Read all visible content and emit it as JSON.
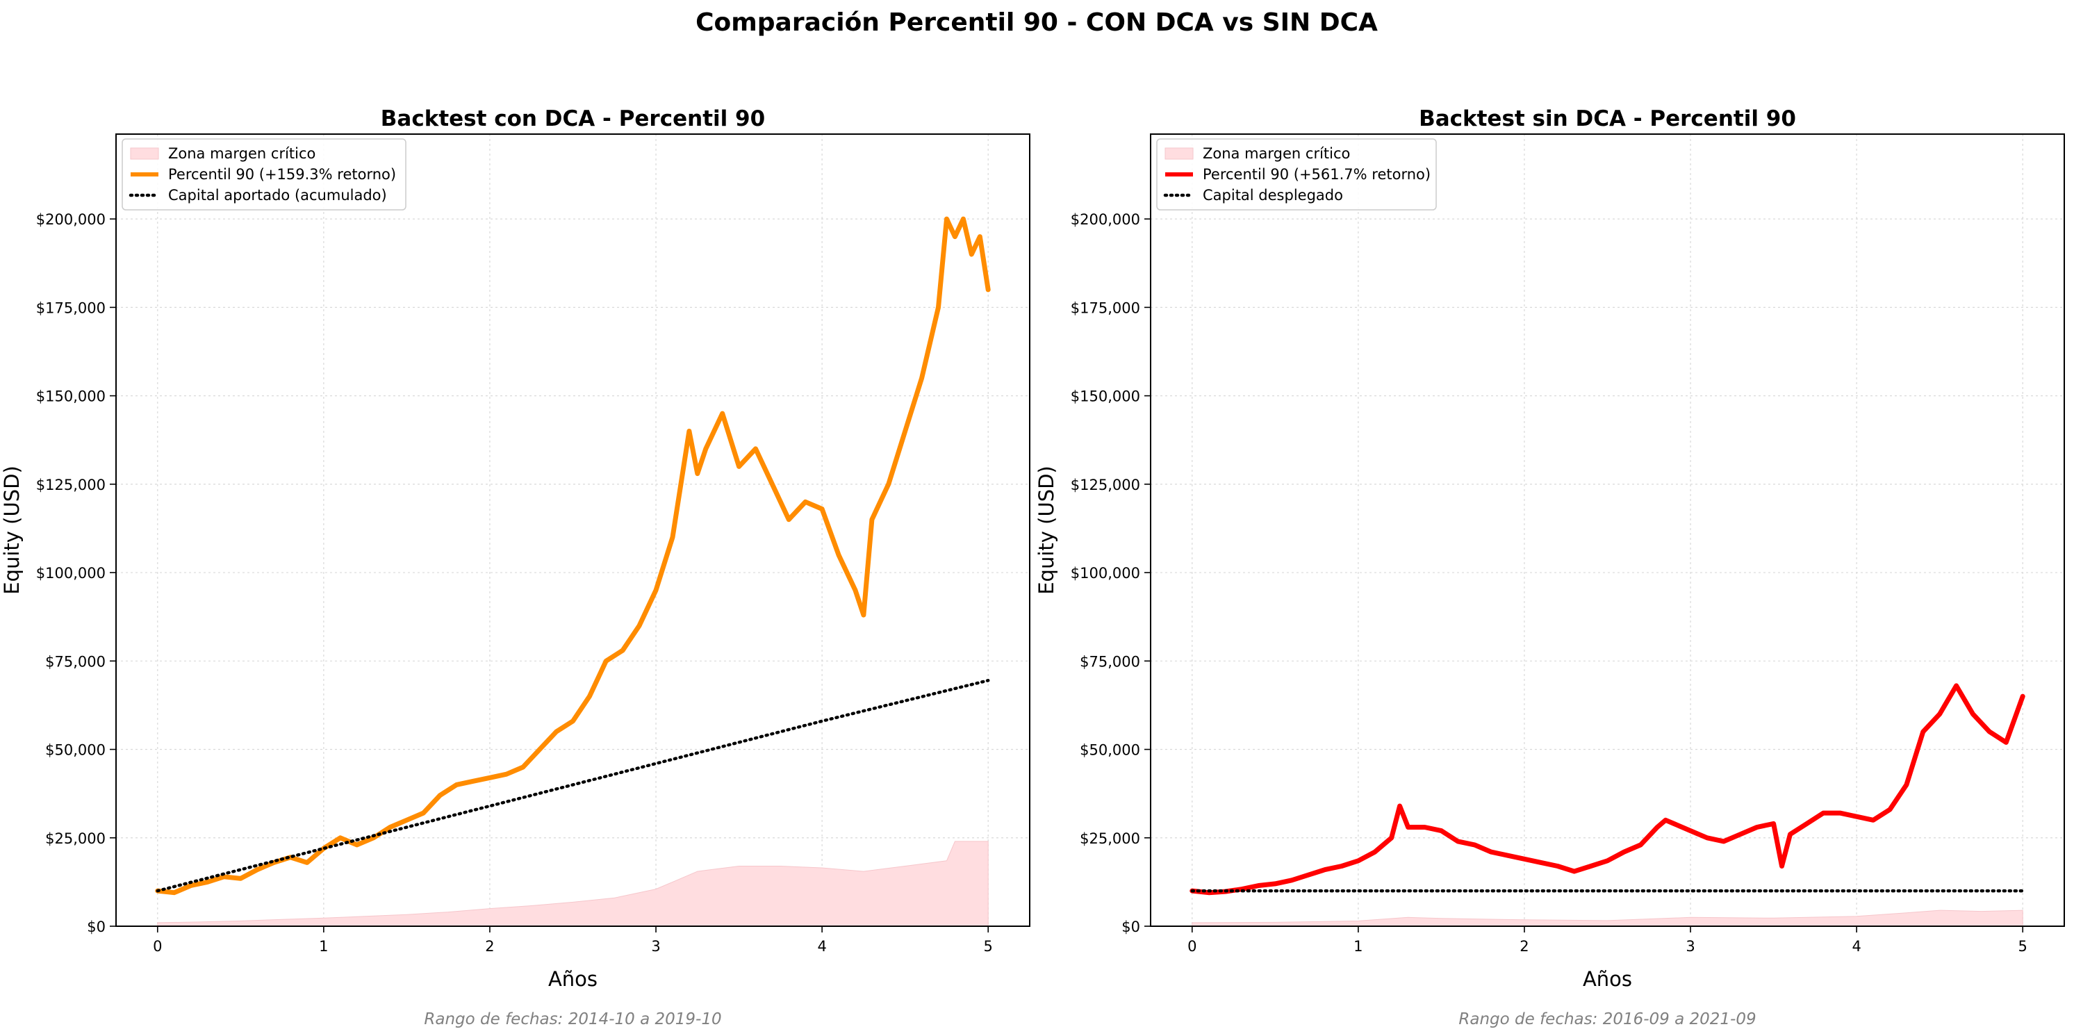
{
  "suptitle": "Comparación Percentil 90 - CON DCA vs SIN DCA",
  "chart_data": [
    {
      "type": "line",
      "title": "Backtest con DCA - Percentil 90",
      "xlabel": "Años",
      "ylabel": "Equity (USD)",
      "xlim": [
        -0.25,
        5.25
      ],
      "ylim": [
        0,
        224000
      ],
      "xticks": [
        0,
        1,
        2,
        3,
        4,
        5
      ],
      "xtick_labels": [
        "0",
        "1",
        "2",
        "3",
        "4",
        "5"
      ],
      "yticks": [
        0,
        25000,
        50000,
        75000,
        100000,
        125000,
        150000,
        175000,
        200000
      ],
      "ytick_labels": [
        "$0",
        "$25,000",
        "$50,000",
        "$75,000",
        "$100,000",
        "$125,000",
        "$150,000",
        "$175,000",
        "$200,000"
      ],
      "grid": true,
      "legend_position": "top-left",
      "footnote": "Rango de fechas: 2014-10 a 2019-10",
      "series": [
        {
          "name": "Zona margen crítico",
          "kind": "area",
          "color": "#ffdde0",
          "x": [
            0,
            0.25,
            0.5,
            0.75,
            1.0,
            1.25,
            1.5,
            1.75,
            2.0,
            2.25,
            2.5,
            2.75,
            3.0,
            3.1,
            3.25,
            3.5,
            3.75,
            4.0,
            4.25,
            4.5,
            4.75,
            4.8,
            5.0
          ],
          "y": [
            1000,
            1200,
            1500,
            1900,
            2300,
            2800,
            3300,
            4000,
            5000,
            5800,
            6800,
            8000,
            10500,
            12500,
            15500,
            17000,
            17000,
            16500,
            15500,
            17000,
            18500,
            24000,
            24000
          ]
        },
        {
          "name": "Percentil 90 (+159.3% retorno)",
          "kind": "line",
          "color": "#ff8c00",
          "x": [
            0,
            0.1,
            0.2,
            0.3,
            0.4,
            0.5,
            0.6,
            0.7,
            0.8,
            0.9,
            1.0,
            1.1,
            1.2,
            1.3,
            1.4,
            1.5,
            1.6,
            1.7,
            1.8,
            1.9,
            2.0,
            2.1,
            2.2,
            2.3,
            2.4,
            2.5,
            2.6,
            2.7,
            2.8,
            2.9,
            3.0,
            3.1,
            3.2,
            3.25,
            3.3,
            3.4,
            3.5,
            3.6,
            3.7,
            3.8,
            3.9,
            4.0,
            4.1,
            4.2,
            4.25,
            4.3,
            4.4,
            4.5,
            4.6,
            4.7,
            4.75,
            4.8,
            4.85,
            4.9,
            4.95,
            5.0
          ],
          "y": [
            10000,
            9500,
            11500,
            12500,
            14000,
            13500,
            16000,
            18000,
            19500,
            18000,
            22000,
            25000,
            23000,
            25000,
            28000,
            30000,
            32000,
            37000,
            40000,
            41000,
            42000,
            43000,
            45000,
            50000,
            55000,
            58000,
            65000,
            75000,
            78000,
            85000,
            95000,
            110000,
            140000,
            128000,
            135000,
            145000,
            130000,
            135000,
            125000,
            115000,
            120000,
            118000,
            105000,
            95000,
            88000,
            115000,
            125000,
            140000,
            155000,
            175000,
            200000,
            195000,
            200000,
            190000,
            195000,
            180000
          ]
        },
        {
          "name": "Capital aportado (acumulado)",
          "kind": "dotted",
          "color": "#000000",
          "x": [
            0,
            1,
            2,
            3,
            4,
            5
          ],
          "y": [
            10000,
            22000,
            34000,
            46000,
            58000,
            69500
          ]
        }
      ]
    },
    {
      "type": "line",
      "title": "Backtest sin DCA - Percentil 90",
      "xlabel": "Años",
      "ylabel": "Equity (USD)",
      "xlim": [
        -0.25,
        5.25
      ],
      "ylim": [
        0,
        224000
      ],
      "xticks": [
        0,
        1,
        2,
        3,
        4,
        5
      ],
      "xtick_labels": [
        "0",
        "1",
        "2",
        "3",
        "4",
        "5"
      ],
      "yticks": [
        0,
        25000,
        50000,
        75000,
        100000,
        125000,
        150000,
        175000,
        200000
      ],
      "ytick_labels": [
        "$0",
        "$25,000",
        "$50,000",
        "$75,000",
        "$100,000",
        "$125,000",
        "$150,000",
        "$175,000",
        "$200,000"
      ],
      "grid": true,
      "legend_position": "top-left",
      "footnote": "Rango de fechas: 2016-09 a 2021-09",
      "series": [
        {
          "name": "Zona margen crítico",
          "kind": "area",
          "color": "#ffdde0",
          "x": [
            0,
            0.5,
            1.0,
            1.3,
            1.5,
            2.0,
            2.5,
            3.0,
            3.5,
            4.0,
            4.3,
            4.5,
            4.75,
            5.0
          ],
          "y": [
            1000,
            1100,
            1500,
            2500,
            2200,
            1800,
            1600,
            2500,
            2300,
            2800,
            3800,
            4500,
            4200,
            4500
          ]
        },
        {
          "name": "Percentil 90 (+561.7% retorno)",
          "kind": "line",
          "color": "#ff0000",
          "x": [
            0,
            0.1,
            0.2,
            0.3,
            0.4,
            0.5,
            0.6,
            0.7,
            0.8,
            0.9,
            1.0,
            1.1,
            1.2,
            1.25,
            1.3,
            1.4,
            1.5,
            1.6,
            1.7,
            1.8,
            1.9,
            2.0,
            2.1,
            2.2,
            2.3,
            2.4,
            2.5,
            2.6,
            2.7,
            2.8,
            2.85,
            2.9,
            3.0,
            3.1,
            3.2,
            3.3,
            3.4,
            3.5,
            3.55,
            3.6,
            3.7,
            3.8,
            3.9,
            4.0,
            4.1,
            4.2,
            4.3,
            4.4,
            4.5,
            4.6,
            4.7,
            4.8,
            4.9,
            5.0
          ],
          "y": [
            10000,
            9500,
            9800,
            10500,
            11500,
            12000,
            13000,
            14500,
            16000,
            17000,
            18500,
            21000,
            25000,
            34000,
            28000,
            28000,
            27000,
            24000,
            23000,
            21000,
            20000,
            19000,
            18000,
            17000,
            15500,
            17000,
            18500,
            21000,
            23000,
            28000,
            30000,
            29000,
            27000,
            25000,
            24000,
            26000,
            28000,
            29000,
            17000,
            26000,
            29000,
            32000,
            32000,
            31000,
            30000,
            33000,
            40000,
            55000,
            60000,
            68000,
            60000,
            55000,
            52000,
            65000
          ]
        },
        {
          "name": "Capital desplegado",
          "kind": "dotted",
          "color": "#000000",
          "x": [
            0,
            5
          ],
          "y": [
            10000,
            10000
          ]
        }
      ]
    }
  ]
}
